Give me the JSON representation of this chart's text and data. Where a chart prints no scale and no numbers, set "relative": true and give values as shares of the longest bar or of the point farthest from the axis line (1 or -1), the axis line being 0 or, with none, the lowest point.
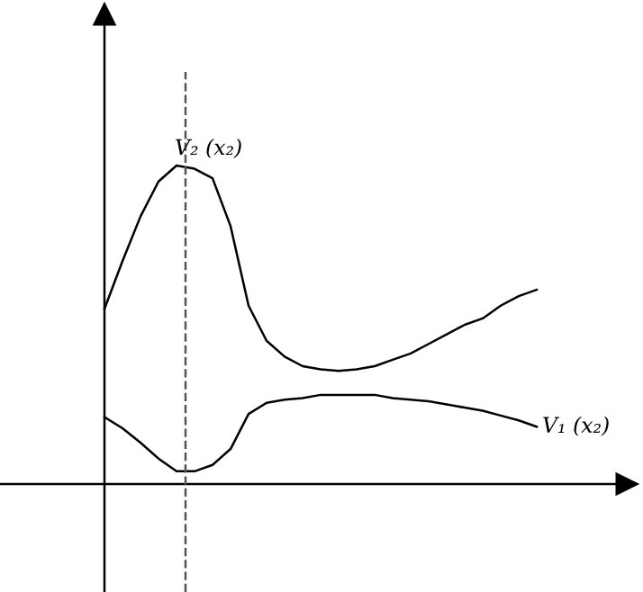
{
  "chart_data": {
    "type": "line",
    "relative": true,
    "legend": false,
    "marker": "none",
    "line_style": "solid",
    "categories": [
      null,
      null,
      null,
      null,
      null,
      null,
      null,
      null,
      null,
      null,
      null,
      null,
      null,
      null,
      null,
      null,
      null,
      null,
      null,
      null,
      null,
      null,
      null,
      null,
      null
    ],
    "series": [
      {
        "name": "V₂ (x₂)",
        "color": "#000000",
        "values": [
          0.55,
          0.7,
          0.84,
          0.95,
          1.0,
          0.99,
          0.96,
          0.81,
          0.56,
          0.45,
          0.4,
          0.37,
          0.36,
          0.355,
          0.36,
          0.37,
          0.39,
          0.41,
          0.44,
          0.47,
          0.5,
          0.52,
          0.56,
          0.59,
          0.61
        ]
      },
      {
        "name": "V₁ (x₂)",
        "color": "#000000",
        "values": [
          0.21,
          0.175,
          0.13,
          0.08,
          0.04,
          0.04,
          0.06,
          0.11,
          0.22,
          0.255,
          0.265,
          0.27,
          0.28,
          0.28,
          0.28,
          0.28,
          0.27,
          0.265,
          0.26,
          0.25,
          0.24,
          0.23,
          0.215,
          0.2,
          0.18
        ]
      }
    ]
  }
}
